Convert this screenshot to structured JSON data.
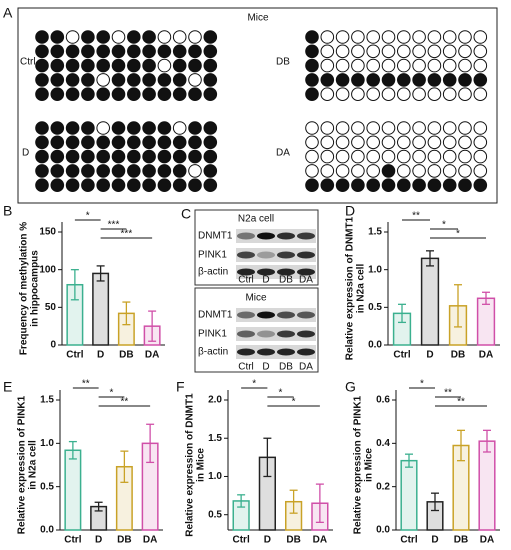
{
  "methylation": {
    "panel_label": "A",
    "title": "Mice",
    "groups": [
      {
        "label": "Ctrl",
        "rows": [
          [
            1,
            1,
            0,
            1,
            1,
            0,
            1,
            1,
            0,
            0,
            0,
            1
          ],
          [
            1,
            1,
            1,
            1,
            1,
            1,
            1,
            1,
            1,
            1,
            1,
            1
          ],
          [
            1,
            1,
            1,
            1,
            1,
            1,
            1,
            1,
            0,
            1,
            1,
            1
          ],
          [
            1,
            1,
            1,
            1,
            0,
            1,
            1,
            1,
            1,
            1,
            0,
            1
          ],
          [
            1,
            1,
            1,
            1,
            1,
            1,
            1,
            1,
            1,
            1,
            1,
            1
          ]
        ]
      },
      {
        "label": "DB",
        "rows": [
          [
            1,
            0,
            0,
            0,
            0,
            0,
            0,
            0,
            0,
            0,
            0,
            0
          ],
          [
            1,
            0,
            0,
            0,
            0,
            0,
            0,
            0,
            0,
            0,
            0,
            0
          ],
          [
            1,
            0,
            0,
            0,
            0,
            0,
            0,
            0,
            0,
            0,
            0,
            0
          ],
          [
            1,
            1,
            1,
            1,
            1,
            1,
            1,
            1,
            1,
            1,
            1,
            1
          ],
          [
            1,
            0,
            0,
            0,
            0,
            0,
            0,
            0,
            0,
            0,
            0,
            0
          ]
        ]
      },
      {
        "label": "D",
        "rows": [
          [
            1,
            1,
            1,
            1,
            0,
            1,
            1,
            1,
            1,
            0,
            1,
            1
          ],
          [
            1,
            1,
            1,
            1,
            1,
            1,
            1,
            1,
            1,
            1,
            1,
            1
          ],
          [
            1,
            1,
            1,
            1,
            1,
            1,
            1,
            1,
            1,
            1,
            1,
            1
          ],
          [
            1,
            1,
            1,
            1,
            1,
            1,
            1,
            1,
            1,
            1,
            0,
            1
          ],
          [
            1,
            1,
            1,
            1,
            1,
            1,
            1,
            1,
            1,
            1,
            1,
            1
          ]
        ]
      },
      {
        "label": "DA",
        "rows": [
          [
            0,
            0,
            0,
            0,
            0,
            0,
            0,
            0,
            0,
            0,
            0,
            0
          ],
          [
            0,
            0,
            0,
            0,
            0,
            0,
            0,
            0,
            0,
            0,
            0,
            0
          ],
          [
            0,
            0,
            0,
            0,
            0,
            0,
            0,
            0,
            0,
            0,
            0,
            0
          ],
          [
            0,
            0,
            0,
            0,
            0,
            1,
            0,
            0,
            0,
            0,
            0,
            0
          ],
          [
            1,
            1,
            1,
            1,
            1,
            1,
            1,
            1,
            1,
            1,
            1,
            1
          ]
        ]
      }
    ]
  },
  "blot": {
    "panel_label": "C",
    "panels": [
      {
        "title": "N2a cell",
        "rows": [
          "DNMT1",
          "PINK1",
          "β-actin"
        ],
        "lanes": [
          "Ctrl",
          "D",
          "DB",
          "DA"
        ]
      },
      {
        "title": "Mice",
        "rows": [
          "DNMT1",
          "PINK1",
          "β-actin"
        ],
        "lanes": [
          "Ctrl",
          "D",
          "DB",
          "DA"
        ]
      }
    ]
  },
  "chart_data": [
    {
      "type": "bar",
      "panel_label": "B",
      "ylabel": [
        "Frequency of methylation %",
        "in hippocampus"
      ],
      "categories": [
        "Ctrl",
        "D",
        "DB",
        "DA"
      ],
      "values": [
        80,
        95,
        42,
        25
      ],
      "errors": [
        20,
        10,
        15,
        20
      ],
      "colors": [
        "#3bb08f",
        "#222222",
        "#c9a227",
        "#d04fa8"
      ],
      "ylim": [
        0,
        150
      ],
      "yticks": [
        0,
        50,
        100,
        150
      ],
      "annotations": [
        "*",
        "***",
        "***"
      ]
    },
    {
      "type": "bar",
      "panel_label": "D",
      "ylabel": [
        "Relative expression of DNMT1",
        "in N2a cell"
      ],
      "categories": [
        "Ctrl",
        "D",
        "DB",
        "DA"
      ],
      "values": [
        0.42,
        1.15,
        0.52,
        0.62
      ],
      "errors": [
        0.12,
        0.1,
        0.28,
        0.08
      ],
      "colors": [
        "#3bb08f",
        "#222222",
        "#c9a227",
        "#d04fa8"
      ],
      "ylim": [
        0,
        1.5
      ],
      "yticks": [
        {
          "value": 0,
          "label": "0.0"
        },
        0.5,
        {
          "value": 1,
          "label": "1.0"
        },
        1.5
      ],
      "annotations": [
        "**",
        "*",
        "*"
      ]
    },
    {
      "type": "bar",
      "panel_label": "E",
      "ylabel": [
        "Relative expression of PINK1",
        "in N2a cell"
      ],
      "categories": [
        "Ctrl",
        "D",
        "DB",
        "DA"
      ],
      "values": [
        0.92,
        0.27,
        0.73,
        1.0
      ],
      "errors": [
        0.1,
        0.05,
        0.18,
        0.22
      ],
      "colors": [
        "#3bb08f",
        "#222222",
        "#c9a227",
        "#d04fa8"
      ],
      "ylim": [
        0,
        1.5
      ],
      "yticks": [
        {
          "value": 0,
          "label": "0.0"
        },
        0.5,
        {
          "value": 1,
          "label": "1.0"
        },
        1.5
      ],
      "annotations": [
        "**",
        "*",
        "**"
      ]
    },
    {
      "type": "bar",
      "panel_label": "F",
      "ylabel": [
        "Relative expression of DNMT1",
        "in Mice"
      ],
      "categories": [
        "Ctrl",
        "D",
        "DB",
        "DA"
      ],
      "values": [
        0.68,
        1.25,
        0.67,
        0.65
      ],
      "errors": [
        0.08,
        0.25,
        0.15,
        0.25
      ],
      "colors": [
        "#3bb08f",
        "#222222",
        "#c9a227",
        "#d04fa8"
      ],
      "ylim": [
        0.3,
        2.0
      ],
      "yticks": [
        0.5,
        {
          "value": 1,
          "label": "1.0"
        },
        1.5,
        {
          "value": 2,
          "label": "2.0"
        }
      ],
      "annotations": [
        "*",
        "*",
        "*"
      ]
    },
    {
      "type": "bar",
      "panel_label": "G",
      "ylabel": [
        "Relative expression of PINK1",
        "in Mice"
      ],
      "categories": [
        "Ctrl",
        "D",
        "DB",
        "DA"
      ],
      "values": [
        0.32,
        0.13,
        0.39,
        0.41
      ],
      "errors": [
        0.03,
        0.04,
        0.07,
        0.05
      ],
      "colors": [
        "#3bb08f",
        "#222222",
        "#c9a227",
        "#d04fa8"
      ],
      "ylim": [
        0,
        0.6
      ],
      "yticks": [
        {
          "value": 0,
          "label": "0.0"
        },
        0.2,
        0.4,
        0.6
      ],
      "annotations": [
        "*",
        "**",
        "**"
      ]
    }
  ]
}
